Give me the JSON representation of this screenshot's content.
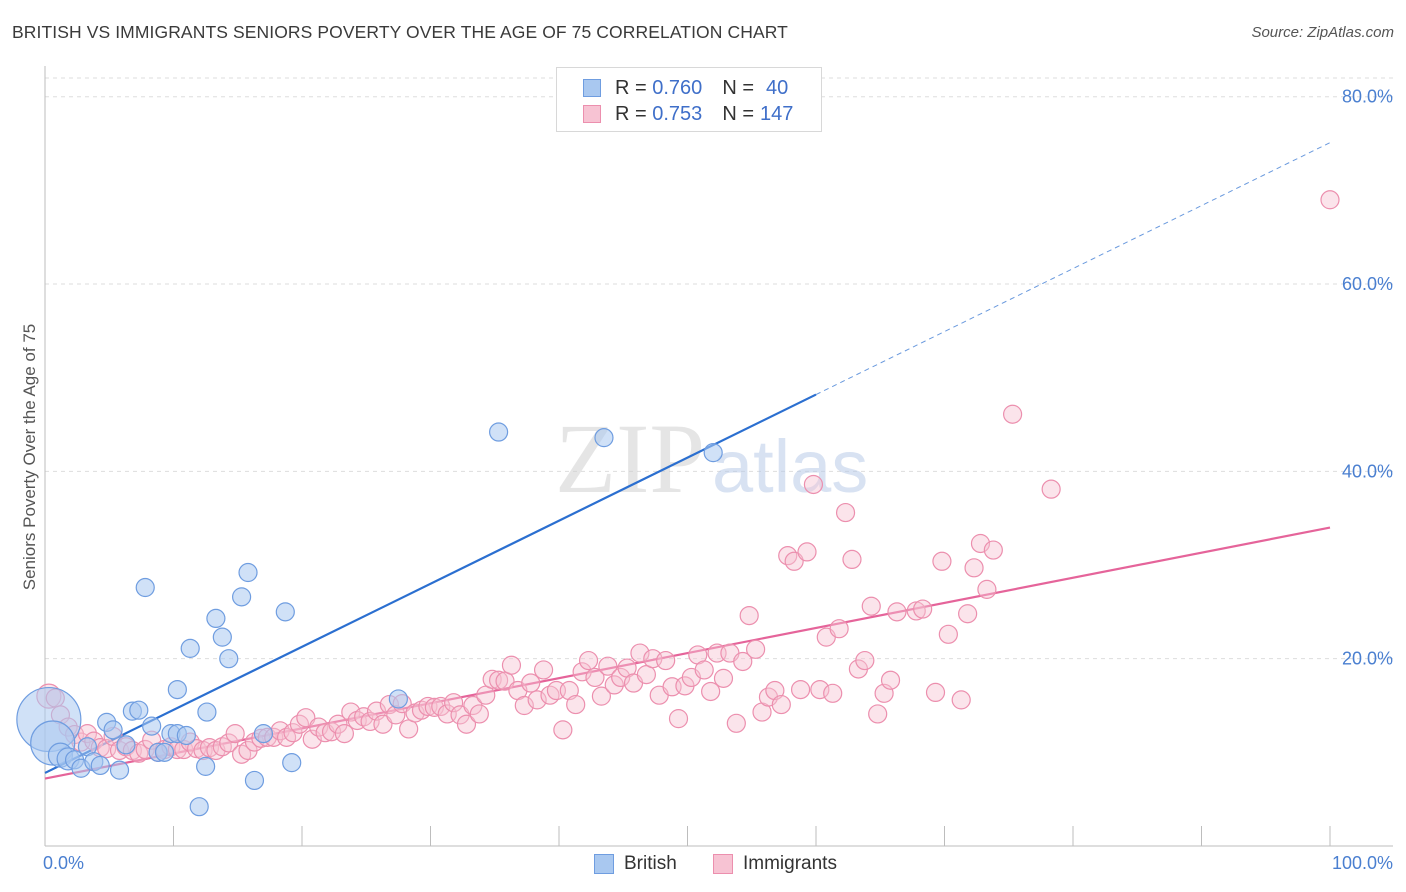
{
  "title": "BRITISH VS IMMIGRANTS SENIORS POVERTY OVER THE AGE OF 75 CORRELATION CHART",
  "source": "Source: ZipAtlas.com",
  "watermark": {
    "zip": "ZIP",
    "atlas": "atlas"
  },
  "legend": {
    "british": {
      "r_label": "R =",
      "r_value": "0.760",
      "n_label": "N =",
      "n_value": "40"
    },
    "immigrants": {
      "r_label": "R =",
      "r_value": "0.753",
      "n_label": "N =",
      "n_value": "147"
    }
  },
  "bottom_legend": {
    "british": "British",
    "immigrants": "Immigrants"
  },
  "colors": {
    "british_fill": "#a9c8f0",
    "british_stroke": "#6f9de0",
    "british_line": "#2b6fd0",
    "immigrants_fill": "#f7c3d3",
    "immigrants_stroke": "#ec8fae",
    "immigrants_line": "#e5649a",
    "tick_label": "#4a7fd0",
    "grid": "#dddddd"
  },
  "chart_data": {
    "type": "scatter",
    "title": "BRITISH VS IMMIGRANTS SENIORS POVERTY OVER THE AGE OF 75 CORRELATION CHART",
    "xlabel": "",
    "ylabel": "Seniors Poverty Over the Age of 75",
    "xlim": [
      0,
      100
    ],
    "ylim": [
      0,
      82
    ],
    "x_tick_labels": [
      "0.0%",
      "100.0%"
    ],
    "y_ticks": [
      20,
      40,
      60,
      80
    ],
    "y_tick_labels": [
      "20.0%",
      "40.0%",
      "60.0%",
      "80.0%"
    ],
    "grid": true,
    "legend_position": "top-center",
    "series": [
      {
        "name": "British",
        "r": 0.76,
        "n": 40,
        "trend": {
          "x0": 0,
          "y0": 7.8,
          "x1": 60,
          "y1": 48.2,
          "dashed_to_x": 100,
          "dashed_to_y": 75.1
        },
        "points": [
          [
            0.3,
            13.5,
            32
          ],
          [
            0.6,
            11.0,
            22
          ],
          [
            1.2,
            9.7,
            12
          ],
          [
            1.8,
            9.3,
            11
          ],
          [
            2.3,
            9.2,
            9
          ],
          [
            2.8,
            8.3,
            9
          ],
          [
            3.3,
            10.6,
            9
          ],
          [
            3.8,
            9.0,
            9
          ],
          [
            4.3,
            8.6,
            9
          ],
          [
            4.8,
            13.2,
            9
          ],
          [
            5.3,
            12.4,
            9
          ],
          [
            5.8,
            8.1,
            9
          ],
          [
            6.3,
            10.8,
            9
          ],
          [
            6.8,
            14.4,
            9
          ],
          [
            7.3,
            14.5,
            9
          ],
          [
            7.8,
            27.6,
            9
          ],
          [
            8.3,
            12.8,
            9
          ],
          [
            8.8,
            10.0,
            9
          ],
          [
            9.3,
            10.0,
            9
          ],
          [
            9.8,
            12.0,
            9
          ],
          [
            10.3,
            12.0,
            9
          ],
          [
            10.3,
            16.7,
            9
          ],
          [
            11.0,
            11.8,
            9
          ],
          [
            11.3,
            21.1,
            9
          ],
          [
            12.0,
            4.2,
            9
          ],
          [
            12.5,
            8.5,
            9
          ],
          [
            12.6,
            14.3,
            9
          ],
          [
            13.3,
            24.3,
            9
          ],
          [
            13.8,
            22.3,
            9
          ],
          [
            14.3,
            20.0,
            9
          ],
          [
            15.3,
            26.6,
            9
          ],
          [
            15.8,
            29.2,
            9
          ],
          [
            16.3,
            7.0,
            9
          ],
          [
            17.0,
            12.0,
            9
          ],
          [
            18.7,
            25.0,
            9
          ],
          [
            19.2,
            8.9,
            9
          ],
          [
            27.5,
            15.7,
            9
          ],
          [
            35.3,
            44.2,
            9
          ],
          [
            43.5,
            43.6,
            9
          ],
          [
            52.0,
            42.0,
            9
          ]
        ]
      },
      {
        "name": "Immigrants",
        "r": 0.753,
        "n": 147,
        "trend": {
          "x0": 0,
          "y0": 7.2,
          "x1": 100,
          "y1": 34.0
        },
        "points": [
          [
            0.3,
            16.0,
            12
          ],
          [
            0.8,
            15.8,
            9
          ],
          [
            1.2,
            14.0,
            9
          ],
          [
            1.8,
            12.7,
            9
          ],
          [
            2.3,
            11.9,
            9
          ],
          [
            2.8,
            11.1,
            9
          ],
          [
            3.3,
            12.0,
            9
          ],
          [
            3.8,
            11.2,
            9
          ],
          [
            4.3,
            10.5,
            9
          ],
          [
            4.8,
            10.4,
            9
          ],
          [
            5.3,
            11.7,
            9
          ],
          [
            5.8,
            10.2,
            9
          ],
          [
            6.3,
            10.6,
            9
          ],
          [
            6.8,
            10.2,
            9
          ],
          [
            7.3,
            9.9,
            9
          ],
          [
            7.8,
            10.3,
            9
          ],
          [
            8.3,
            11.3,
            9
          ],
          [
            8.8,
            10.0,
            9
          ],
          [
            9.3,
            10.3,
            9
          ],
          [
            9.8,
            10.6,
            9
          ],
          [
            10.3,
            10.3,
            9
          ],
          [
            10.8,
            10.3,
            9
          ],
          [
            11.3,
            11.1,
            9
          ],
          [
            11.8,
            10.4,
            9
          ],
          [
            12.3,
            10.2,
            9
          ],
          [
            12.8,
            10.5,
            9
          ],
          [
            13.3,
            10.2,
            9
          ],
          [
            13.8,
            10.6,
            9
          ],
          [
            14.3,
            11.0,
            9
          ],
          [
            14.8,
            12.0,
            9
          ],
          [
            15.3,
            9.8,
            9
          ],
          [
            15.8,
            10.2,
            9
          ],
          [
            16.3,
            11.1,
            9
          ],
          [
            16.8,
            11.5,
            9
          ],
          [
            17.3,
            11.6,
            9
          ],
          [
            17.8,
            11.6,
            9
          ],
          [
            18.3,
            12.3,
            9
          ],
          [
            18.8,
            11.6,
            9
          ],
          [
            19.3,
            12.1,
            9
          ],
          [
            19.8,
            13.0,
            9
          ],
          [
            20.3,
            13.7,
            9
          ],
          [
            20.8,
            11.4,
            9
          ],
          [
            21.3,
            12.7,
            9
          ],
          [
            21.8,
            12.1,
            9
          ],
          [
            22.3,
            12.2,
            9
          ],
          [
            22.8,
            13.0,
            9
          ],
          [
            23.3,
            12.0,
            9
          ],
          [
            23.8,
            14.3,
            9
          ],
          [
            24.3,
            13.4,
            9
          ],
          [
            24.8,
            13.8,
            9
          ],
          [
            25.3,
            13.3,
            9
          ],
          [
            25.8,
            14.4,
            9
          ],
          [
            26.3,
            13.0,
            9
          ],
          [
            26.8,
            15.1,
            9
          ],
          [
            27.3,
            14.0,
            9
          ],
          [
            27.8,
            15.2,
            9
          ],
          [
            28.3,
            12.5,
            9
          ],
          [
            28.8,
            14.2,
            9
          ],
          [
            29.3,
            14.5,
            9
          ],
          [
            29.8,
            14.9,
            9
          ],
          [
            30.3,
            14.8,
            9
          ],
          [
            30.8,
            14.9,
            9
          ],
          [
            31.3,
            14.1,
            9
          ],
          [
            31.8,
            15.3,
            9
          ],
          [
            32.3,
            14.0,
            9
          ],
          [
            32.8,
            13.0,
            9
          ],
          [
            33.3,
            15.0,
            9
          ],
          [
            33.8,
            14.1,
            9
          ],
          [
            34.3,
            16.1,
            9
          ],
          [
            34.8,
            17.8,
            9
          ],
          [
            35.3,
            17.7,
            9
          ],
          [
            35.8,
            17.6,
            9
          ],
          [
            36.3,
            19.3,
            9
          ],
          [
            36.8,
            16.6,
            9
          ],
          [
            37.3,
            15.0,
            9
          ],
          [
            37.8,
            17.4,
            9
          ],
          [
            38.3,
            15.6,
            9
          ],
          [
            38.8,
            18.8,
            9
          ],
          [
            39.3,
            16.1,
            9
          ],
          [
            39.8,
            16.6,
            9
          ],
          [
            40.3,
            12.4,
            9
          ],
          [
            40.8,
            16.6,
            9
          ],
          [
            41.3,
            15.1,
            9
          ],
          [
            41.8,
            18.6,
            9
          ],
          [
            42.3,
            19.8,
            9
          ],
          [
            42.8,
            18.0,
            9
          ],
          [
            43.3,
            16.0,
            9
          ],
          [
            43.8,
            19.2,
            9
          ],
          [
            44.3,
            17.2,
            9
          ],
          [
            44.8,
            18.0,
            9
          ],
          [
            45.3,
            19.0,
            9
          ],
          [
            45.8,
            17.4,
            9
          ],
          [
            46.3,
            20.6,
            9
          ],
          [
            46.8,
            18.3,
            9
          ],
          [
            47.3,
            20.0,
            9
          ],
          [
            47.8,
            16.1,
            9
          ],
          [
            48.3,
            19.8,
            9
          ],
          [
            48.8,
            17.0,
            9
          ],
          [
            49.3,
            13.6,
            9
          ],
          [
            49.8,
            17.1,
            9
          ],
          [
            50.3,
            18.0,
            9
          ],
          [
            50.8,
            20.4,
            9
          ],
          [
            51.3,
            18.8,
            9
          ],
          [
            51.8,
            16.5,
            9
          ],
          [
            52.3,
            20.6,
            9
          ],
          [
            52.8,
            17.9,
            9
          ],
          [
            53.3,
            20.6,
            9
          ],
          [
            53.8,
            13.1,
            9
          ],
          [
            54.3,
            19.7,
            9
          ],
          [
            54.8,
            24.6,
            9
          ],
          [
            55.3,
            21.0,
            9
          ],
          [
            55.8,
            14.3,
            9
          ],
          [
            56.3,
            15.9,
            9
          ],
          [
            56.8,
            16.6,
            9
          ],
          [
            57.3,
            15.1,
            9
          ],
          [
            57.8,
            31.0,
            9
          ],
          [
            58.3,
            30.4,
            9
          ],
          [
            58.8,
            16.7,
            9
          ],
          [
            59.3,
            31.4,
            9
          ],
          [
            59.8,
            38.6,
            9
          ],
          [
            60.3,
            16.7,
            9
          ],
          [
            60.8,
            22.3,
            9
          ],
          [
            61.3,
            16.3,
            9
          ],
          [
            61.8,
            23.2,
            9
          ],
          [
            62.3,
            35.6,
            9
          ],
          [
            62.8,
            30.6,
            9
          ],
          [
            63.3,
            18.9,
            9
          ],
          [
            63.8,
            19.8,
            9
          ],
          [
            64.3,
            25.6,
            9
          ],
          [
            64.8,
            14.1,
            9
          ],
          [
            65.3,
            16.3,
            9
          ],
          [
            65.8,
            17.7,
            9
          ],
          [
            66.3,
            25.0,
            9
          ],
          [
            67.8,
            25.1,
            9
          ],
          [
            68.3,
            25.3,
            9
          ],
          [
            69.3,
            16.4,
            9
          ],
          [
            69.8,
            30.4,
            9
          ],
          [
            70.3,
            22.6,
            9
          ],
          [
            71.3,
            15.6,
            9
          ],
          [
            71.8,
            24.8,
            9
          ],
          [
            72.3,
            29.7,
            9
          ],
          [
            72.8,
            32.3,
            9
          ],
          [
            73.3,
            27.4,
            9
          ],
          [
            73.8,
            31.6,
            9
          ],
          [
            75.3,
            46.1,
            9
          ],
          [
            78.3,
            38.1,
            9
          ],
          [
            100.0,
            69.0,
            9
          ]
        ]
      }
    ]
  }
}
